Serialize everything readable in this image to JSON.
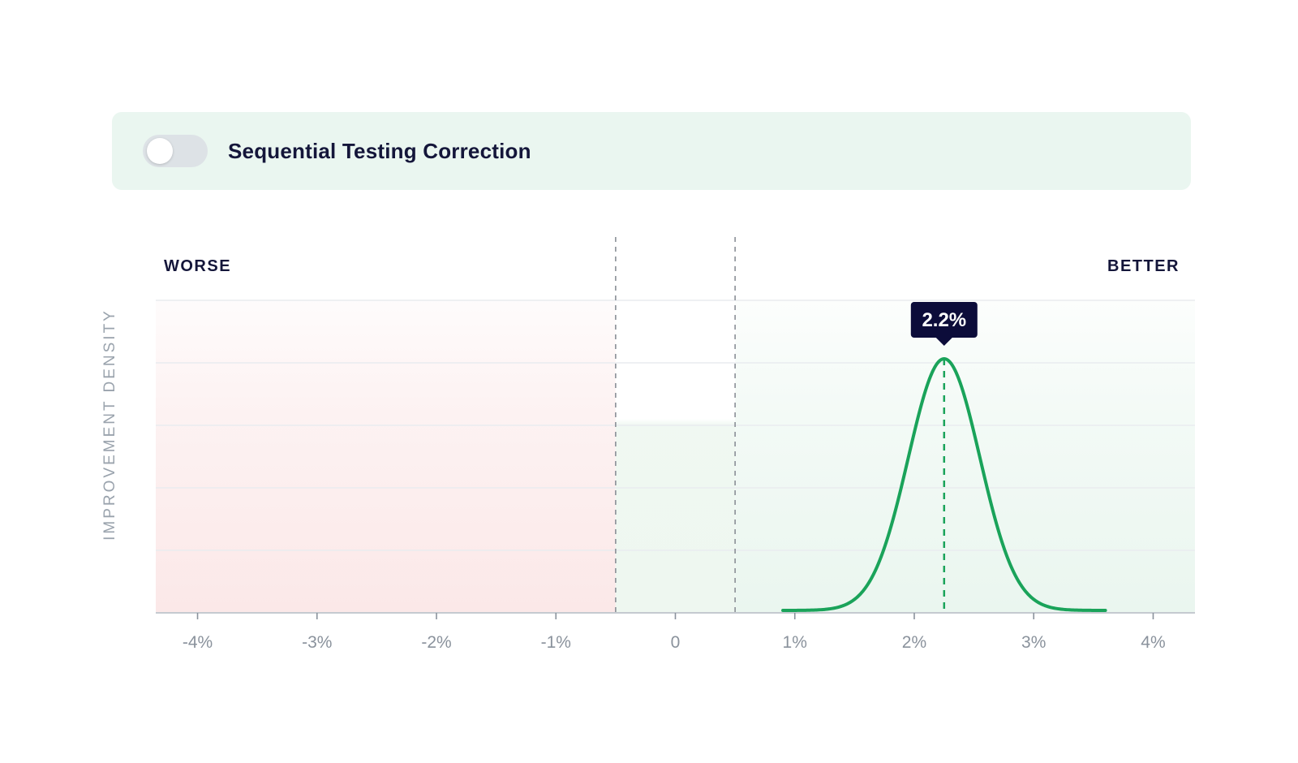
{
  "toggle": {
    "label": "Sequential Testing Correction",
    "state": "off"
  },
  "colors": {
    "worse_region": "#fbe8e8",
    "rope_region": "#eef7f0",
    "better_region": "#eaf6ef",
    "curve": "#1aa35a",
    "tooltip_bg": "#0c0c3a",
    "text": "#14163a",
    "muted": "#8a929c"
  },
  "chart_data": {
    "type": "area",
    "title": "",
    "region_labels": {
      "left": "WORSE",
      "right": "BETTER"
    },
    "ylabel": "IMPROVEMENT DENSITY",
    "x_ticks": [
      "-4%",
      "-3%",
      "-2%",
      "-1%",
      "0",
      "1%",
      "2%",
      "3%",
      "4%"
    ],
    "xlim": [
      -4.35,
      4.35
    ],
    "x_unit": "%",
    "rope": [
      -0.5,
      0.5
    ],
    "distribution": {
      "type": "normal",
      "mean": 2.25,
      "sd": 0.3,
      "x_range": [
        0.9,
        3.6
      ]
    },
    "highlight": {
      "x": 2.25,
      "label": "2.2%"
    },
    "grid": true,
    "gridlines_y": 5
  }
}
